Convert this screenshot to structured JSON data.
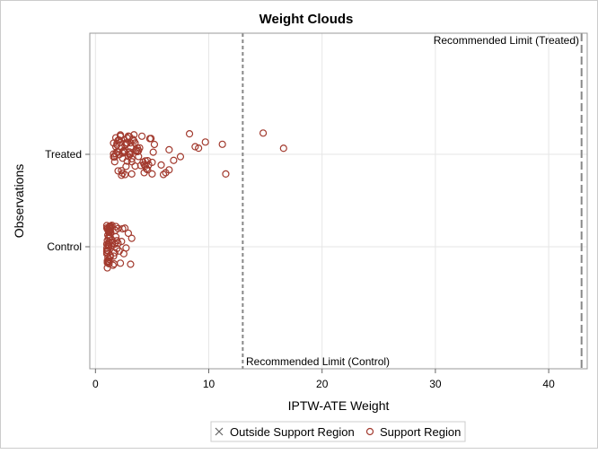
{
  "chart_data": {
    "type": "scatter",
    "title": "Weight Clouds",
    "xlabel": "IPTW-ATE Weight",
    "ylabel": "Observations",
    "xlim": [
      -0.5,
      43.4
    ],
    "x_ticks": [
      0,
      10,
      20,
      30,
      40
    ],
    "categories": [
      "Treated",
      "Control"
    ],
    "grid": true,
    "legend": {
      "position": "bottom",
      "entries": [
        {
          "label": "Outside Support Region",
          "marker": "x",
          "color": "#666666"
        },
        {
          "label": "Support Region",
          "marker": "circle",
          "color": "#A23A2E"
        }
      ]
    },
    "reference_lines": [
      {
        "x": 13.0,
        "label": "Recommended Limit (Control)"
      },
      {
        "x": 42.9,
        "label": "Recommended Limit (Treated)"
      }
    ],
    "series": [
      {
        "category": "Treated",
        "region": "Support Region",
        "weights": [
          1.6,
          1.7,
          1.8,
          1.9,
          2.0,
          2.1,
          2.2,
          2.3,
          2.4,
          2.5,
          2.6,
          2.7,
          2.8,
          2.9,
          3.0,
          3.1,
          3.2,
          3.3,
          1.6,
          1.8,
          2.0,
          2.2,
          2.4,
          2.6,
          2.8,
          3.0,
          3.2,
          3.4,
          3.6,
          3.8,
          1.7,
          1.9,
          2.1,
          2.3,
          2.5,
          2.7,
          2.9,
          3.1,
          3.3,
          3.5,
          3.7,
          3.9,
          4.1,
          4.3,
          1.6,
          2.0,
          2.4,
          2.8,
          3.2,
          3.6,
          4.0,
          4.4,
          4.8,
          2.2,
          2.6,
          3.0,
          3.4,
          3.8,
          4.2,
          4.6,
          5.0,
          1.8,
          2.5,
          3.1,
          3.7,
          4.5,
          5.1,
          1.9,
          2.7,
          3.5,
          4.7,
          4.9,
          5.2,
          4.4,
          4.6,
          6.0,
          6.2,
          6.5,
          5.8,
          6.9,
          7.5,
          8.3,
          8.8,
          9.1,
          9.7,
          6.5,
          5.0,
          4.3,
          11.2,
          11.5,
          14.8,
          16.6
        ]
      },
      {
        "category": "Control",
        "region": "Support Region",
        "weights": [
          1.0,
          1.0,
          1.05,
          1.05,
          1.1,
          1.1,
          1.1,
          1.15,
          1.15,
          1.2,
          1.2,
          1.2,
          1.25,
          1.25,
          1.3,
          1.3,
          1.0,
          1.05,
          1.1,
          1.15,
          1.2,
          1.25,
          1.3,
          1.35,
          1.0,
          1.05,
          1.1,
          1.15,
          1.2,
          1.25,
          1.3,
          1.4,
          1.0,
          1.05,
          1.1,
          1.15,
          1.2,
          1.25,
          1.35,
          1.45,
          1.0,
          1.1,
          1.2,
          1.3,
          1.4,
          1.5,
          1.0,
          1.1,
          1.2,
          1.3,
          1.45,
          1.55,
          1.6,
          1.7,
          1.8,
          1.9,
          2.0,
          2.2,
          2.4,
          2.6,
          2.9,
          3.2,
          1.8,
          2.1,
          1.7,
          2.3,
          1.9,
          3.1,
          2.7,
          2.0,
          1.75,
          1.65,
          2.5
        ]
      }
    ]
  }
}
